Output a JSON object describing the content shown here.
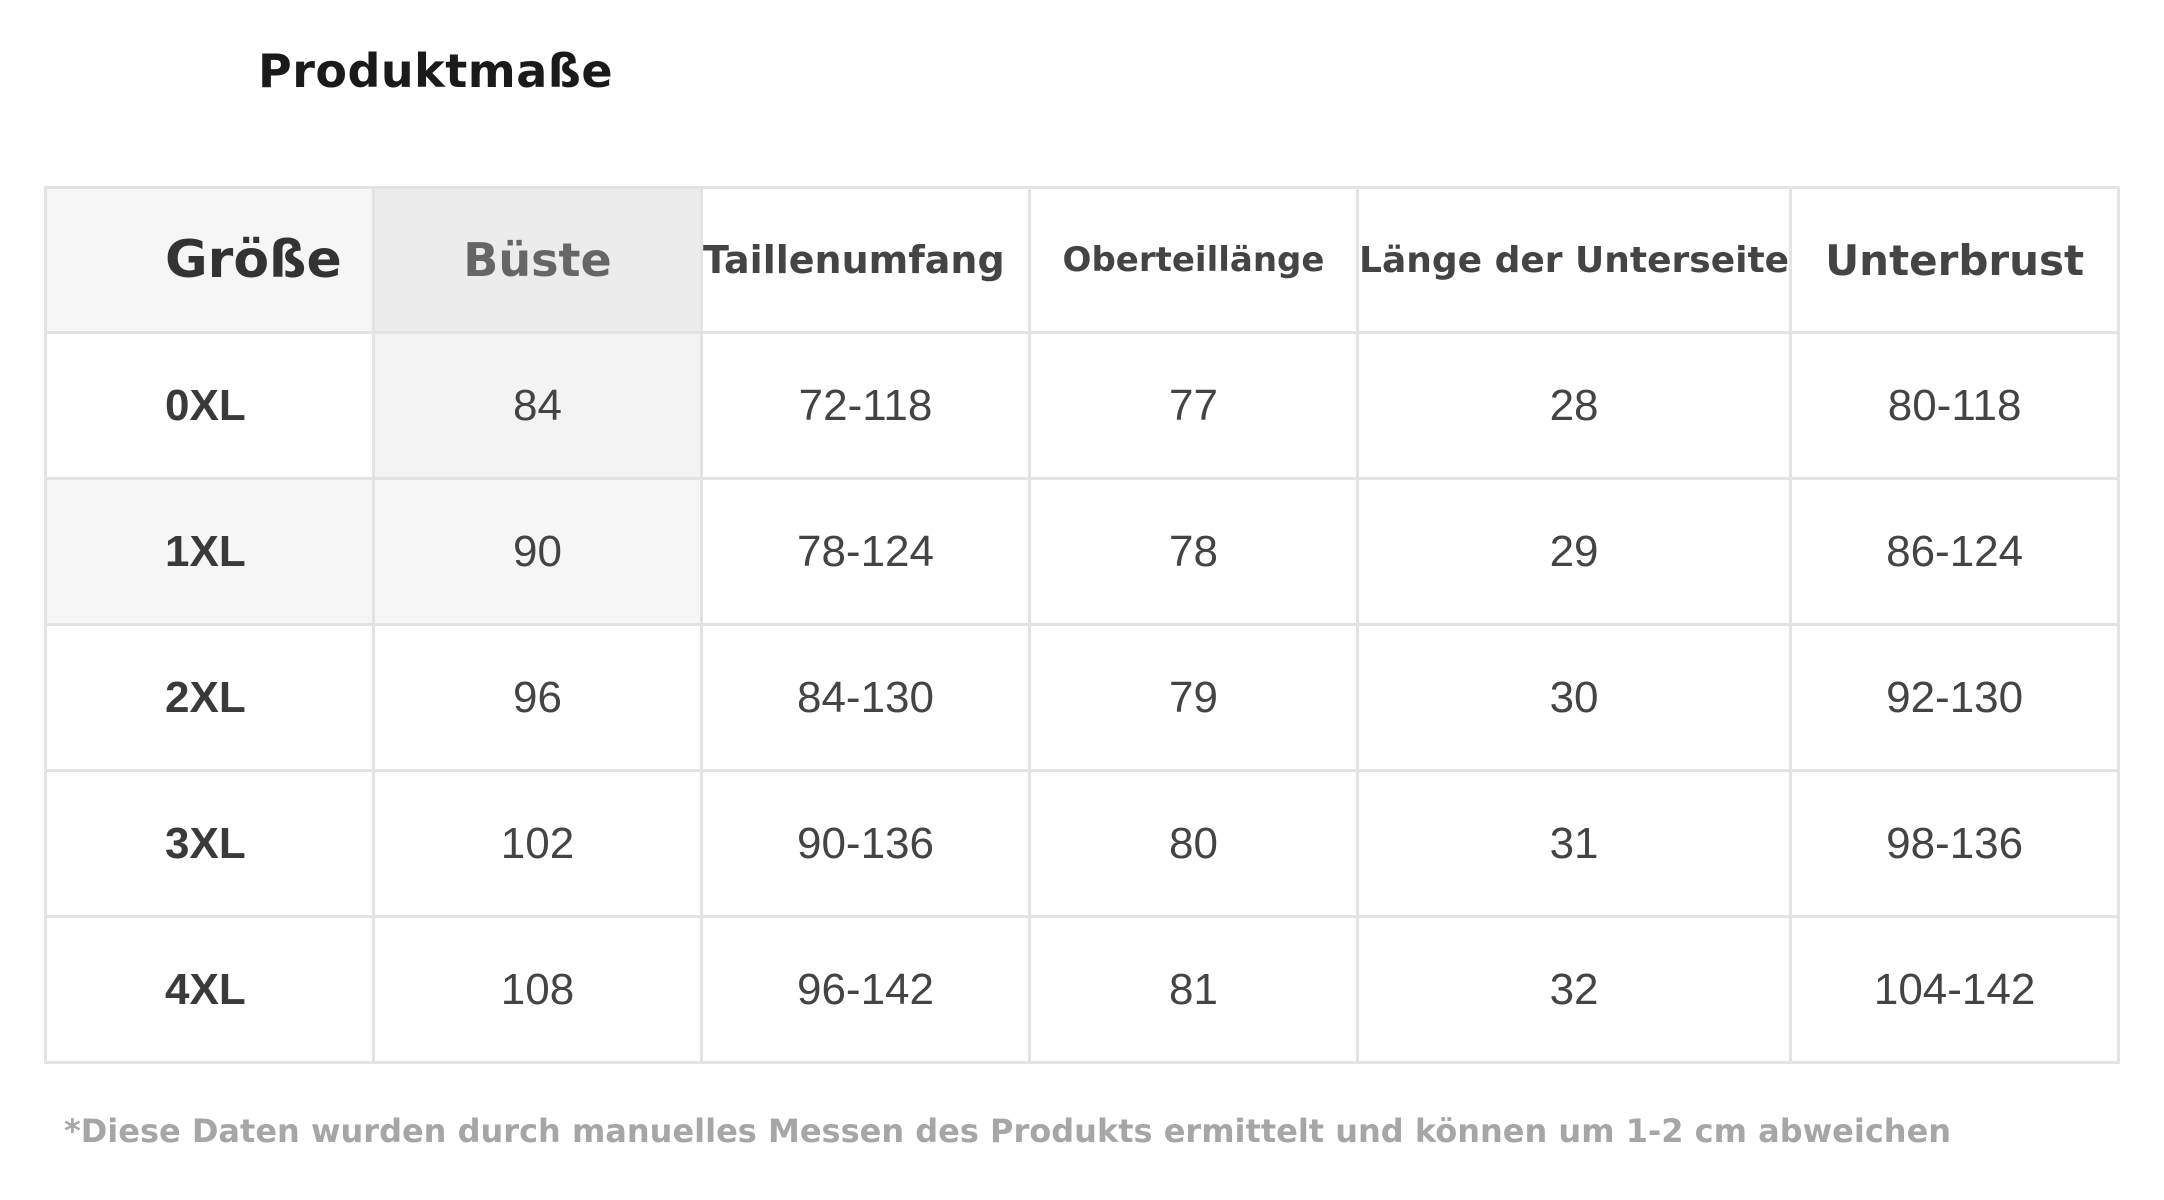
{
  "title": "Produktmaße",
  "table": {
    "headers": [
      "Größe",
      "Büste",
      "Taillenumfang",
      "Oberteillänge",
      "Länge der Unterseite",
      "Unterbrust"
    ],
    "rows": [
      [
        "0XL",
        "84",
        "72-118",
        "77",
        "28",
        "80-118"
      ],
      [
        "1XL",
        "90",
        "78-124",
        "78",
        "29",
        "86-124"
      ],
      [
        "2XL",
        "96",
        "84-130",
        "79",
        "30",
        "92-130"
      ],
      [
        "3XL",
        "102",
        "90-136",
        "80",
        "31",
        "98-136"
      ],
      [
        "4XL",
        "108",
        "96-142",
        "81",
        "32",
        "104-142"
      ]
    ]
  },
  "note": "*Diese Daten wurden durch manuelles Messen des Produkts ermittelt und können um 1-2 cm abweichen"
}
